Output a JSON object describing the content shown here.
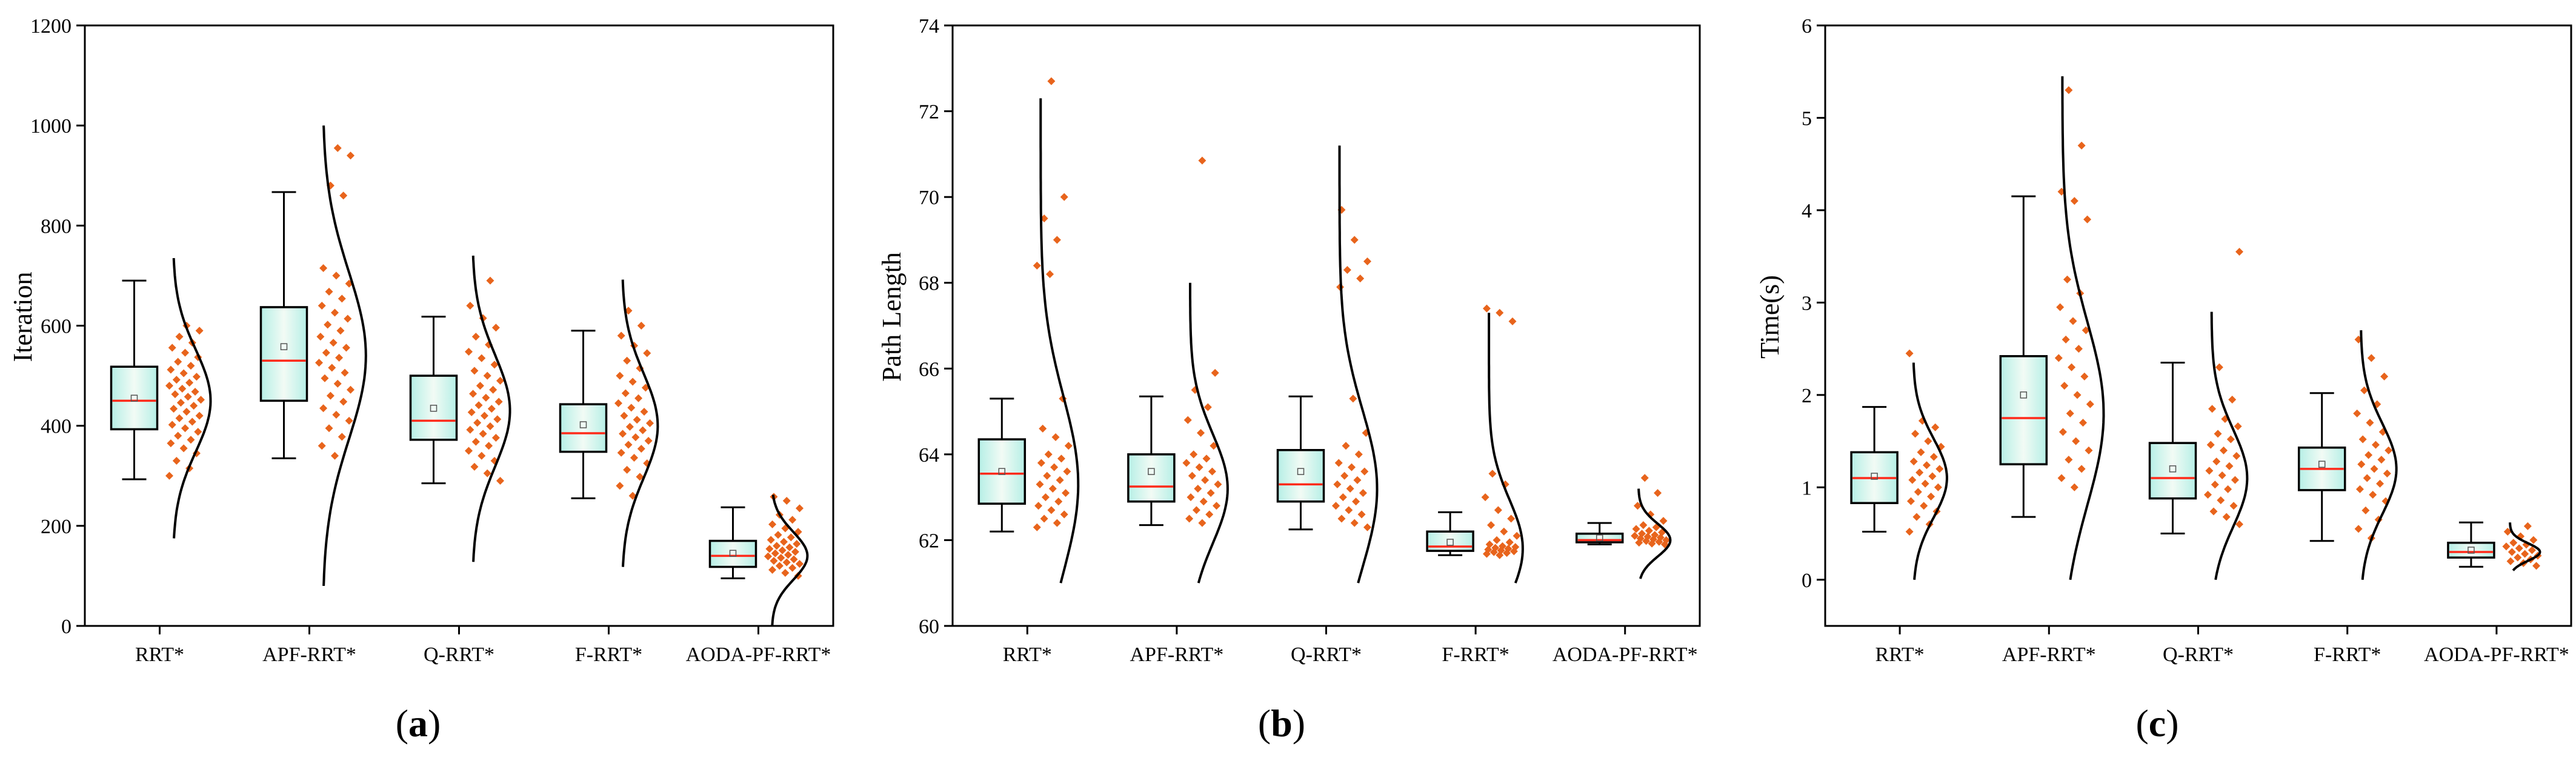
{
  "figure": {
    "colors": {
      "point": "#e8641c",
      "median": "#ff2a1a",
      "box_fill_edge": "#b6efe6",
      "box_fill_center": "#f2fbf5",
      "line": "#000000"
    },
    "icons": {
      "mean_marker": "small-open-square"
    }
  },
  "chart_data": [
    {
      "type": "box-half-violin",
      "panel_label": {
        "open": "(",
        "letter": "a",
        "close": ")"
      },
      "title": "",
      "xlabel": "",
      "ylabel": "Iteration",
      "ylim": [
        0,
        1200
      ],
      "yticks": [
        0,
        200,
        400,
        600,
        800,
        1000,
        1200
      ],
      "ytick_labels": [
        "0",
        "200",
        "400",
        "600",
        "800",
        "1000",
        "1200"
      ],
      "categories": [
        "RRT*",
        "APF-RRT*",
        "Q-RRT*",
        "F-RRT*",
        "AODA-PF-RRT*"
      ],
      "series": [
        {
          "name": "RRT*",
          "min": 293,
          "q1": 393,
          "median": 450,
          "q3": 518,
          "max": 690,
          "mean": 455,
          "curve_range": [
            175,
            735
          ],
          "curve_peak": 450,
          "curve_width": 1.0,
          "points": [
            300,
            315,
            330,
            345,
            355,
            365,
            372,
            380,
            388,
            395,
            402,
            408,
            415,
            420,
            428,
            434,
            440,
            446,
            452,
            458,
            463,
            468,
            474,
            480,
            486,
            492,
            498,
            505,
            512,
            520,
            528,
            537,
            546,
            556,
            566,
            578,
            590,
            600
          ]
        },
        {
          "name": "APF-RRT*",
          "min": 335,
          "q1": 450,
          "median": 530,
          "q3": 637,
          "max": 867,
          "mean": 558,
          "curve_range": [
            80,
            1000
          ],
          "curve_peak": 540,
          "curve_width": 1.15,
          "points": [
            340,
            360,
            378,
            395,
            410,
            422,
            435,
            448,
            460,
            472,
            484,
            495,
            506,
            516,
            526,
            536,
            546,
            556,
            566,
            578,
            590,
            602,
            614,
            626,
            640,
            654,
            668,
            684,
            700,
            715,
            860,
            880,
            940,
            955
          ]
        },
        {
          "name": "Q-RRT*",
          "min": 285,
          "q1": 372,
          "median": 410,
          "q3": 500,
          "max": 618,
          "mean": 435,
          "curve_range": [
            128,
            740
          ],
          "curve_peak": 430,
          "curve_width": 1.0,
          "points": [
            290,
            305,
            318,
            330,
            340,
            350,
            360,
            368,
            376,
            384,
            392,
            399,
            406,
            413,
            420,
            427,
            434,
            441,
            448,
            456,
            464,
            472,
            480,
            490,
            500,
            510,
            522,
            535,
            548,
            562,
            578,
            596,
            615,
            640,
            690
          ]
        },
        {
          "name": "F-RRT*",
          "min": 255,
          "q1": 348,
          "median": 385,
          "q3": 443,
          "max": 590,
          "mean": 402,
          "curve_range": [
            118,
            692
          ],
          "curve_peak": 400,
          "curve_width": 0.95,
          "points": [
            260,
            280,
            298,
            312,
            325,
            336,
            346,
            354,
            362,
            370,
            377,
            384,
            391,
            398,
            405,
            412,
            420,
            428,
            436,
            445,
            455,
            465,
            476,
            488,
            500,
            515,
            530,
            545,
            560,
            580,
            600,
            630
          ]
        },
        {
          "name": "AODA-PF-RRT*",
          "min": 95,
          "q1": 118,
          "median": 140,
          "q3": 170,
          "max": 237,
          "mean": 145,
          "curve_range": [
            0,
            262
          ],
          "curve_peak": 140,
          "curve_width": 0.95,
          "points": [
            100,
            106,
            112,
            116,
            120,
            124,
            127,
            130,
            133,
            136,
            139,
            142,
            145,
            148,
            151,
            154,
            157,
            160,
            164,
            168,
            172,
            177,
            182,
            188,
            195,
            203,
            212,
            222,
            235,
            250,
            258
          ]
        }
      ]
    },
    {
      "type": "box-half-violin",
      "panel_label": {
        "open": "(",
        "letter": "b",
        "close": ")"
      },
      "title": "",
      "xlabel": "",
      "ylabel": "Path Length",
      "ylim": [
        60,
        74
      ],
      "yticks": [
        60,
        62,
        64,
        66,
        68,
        70,
        72,
        74
      ],
      "ytick_labels": [
        "60",
        "62",
        "64",
        "66",
        "68",
        "70",
        "72",
        "74"
      ],
      "categories": [
        "RRT*",
        "APF-RRT*",
        "Q-RRT*",
        "F-RRT*",
        "AODA-PF-RRT*"
      ],
      "series": [
        {
          "name": "RRT*",
          "min": 62.2,
          "q1": 62.85,
          "median": 63.55,
          "q3": 64.35,
          "max": 65.3,
          "mean": 63.6,
          "curve_range": [
            61.0,
            72.3
          ],
          "curve_peak": 63.3,
          "curve_width": 1.0,
          "points": [
            62.3,
            62.4,
            62.5,
            62.6,
            62.7,
            62.8,
            62.9,
            63.0,
            63.1,
            63.2,
            63.3,
            63.4,
            63.5,
            63.6,
            63.7,
            63.8,
            63.9,
            64.0,
            64.2,
            64.4,
            64.6,
            65.3,
            68.2,
            68.4,
            69.0,
            69.5,
            70.0,
            72.7
          ]
        },
        {
          "name": "APF-RRT*",
          "min": 62.35,
          "q1": 62.9,
          "median": 63.25,
          "q3": 64.0,
          "max": 65.35,
          "mean": 63.6,
          "curve_range": [
            61.0,
            68.0
          ],
          "curve_peak": 63.2,
          "curve_width": 1.0,
          "points": [
            62.4,
            62.5,
            62.6,
            62.7,
            62.8,
            62.9,
            63.0,
            63.1,
            63.2,
            63.3,
            63.4,
            63.5,
            63.6,
            63.7,
            63.8,
            63.9,
            64.0,
            64.2,
            64.5,
            64.8,
            65.1,
            65.5,
            65.9,
            70.85
          ]
        },
        {
          "name": "Q-RRT*",
          "min": 62.25,
          "q1": 62.9,
          "median": 63.3,
          "q3": 64.1,
          "max": 65.35,
          "mean": 63.6,
          "curve_range": [
            61.0,
            71.2
          ],
          "curve_peak": 63.2,
          "curve_width": 1.0,
          "points": [
            62.3,
            62.4,
            62.5,
            62.6,
            62.7,
            62.8,
            62.9,
            63.0,
            63.1,
            63.2,
            63.3,
            63.4,
            63.5,
            63.6,
            63.7,
            63.8,
            64.0,
            64.2,
            64.5,
            65.3,
            67.9,
            68.1,
            68.3,
            68.5,
            69.0,
            69.7
          ]
        },
        {
          "name": "F-RRT*",
          "min": 61.65,
          "q1": 61.75,
          "median": 61.85,
          "q3": 62.2,
          "max": 62.65,
          "mean": 61.95,
          "curve_range": [
            61.0,
            67.3
          ],
          "curve_peak": 61.8,
          "curve_width": 0.9,
          "points": [
            61.65,
            61.68,
            61.7,
            61.72,
            61.74,
            61.76,
            61.78,
            61.8,
            61.82,
            61.84,
            61.86,
            61.9,
            61.95,
            62.0,
            62.1,
            62.2,
            62.35,
            62.5,
            62.7,
            63.0,
            63.3,
            63.55,
            67.1,
            67.3,
            67.4
          ]
        },
        {
          "name": "AODA-PF-RRT*",
          "min": 61.9,
          "q1": 61.95,
          "median": 62.0,
          "q3": 62.15,
          "max": 62.4,
          "mean": 62.05,
          "curve_range": [
            61.1,
            63.2
          ],
          "curve_peak": 62.0,
          "curve_width": 0.85,
          "points": [
            61.9,
            61.92,
            61.94,
            61.96,
            61.98,
            62.0,
            62.02,
            62.04,
            62.06,
            62.08,
            62.1,
            62.12,
            62.15,
            62.18,
            62.22,
            62.26,
            62.3,
            62.35,
            62.45,
            62.6,
            62.8,
            63.1,
            63.45
          ]
        }
      ]
    },
    {
      "type": "box-half-violin",
      "panel_label": {
        "open": "(",
        "letter": "c",
        "close": ")"
      },
      "title": "",
      "xlabel": "",
      "ylabel": "Time(s)",
      "ylim": [
        -0.5,
        6
      ],
      "yticks": [
        0,
        1,
        2,
        3,
        4,
        5,
        6
      ],
      "ytick_labels": [
        "0",
        "1",
        "2",
        "3",
        "4",
        "5",
        "6"
      ],
      "categories": [
        "RRT*",
        "APF-RRT*",
        "Q-RRT*",
        "F-RRT*",
        "AODA-PF-RRT*"
      ],
      "series": [
        {
          "name": "RRT*",
          "min": 0.52,
          "q1": 0.83,
          "median": 1.1,
          "q3": 1.38,
          "max": 1.87,
          "mean": 1.12,
          "curve_range": [
            0.0,
            2.35
          ],
          "curve_peak": 1.1,
          "curve_width": 0.9,
          "points": [
            0.52,
            0.6,
            0.68,
            0.74,
            0.8,
            0.85,
            0.9,
            0.95,
            1.0,
            1.04,
            1.08,
            1.12,
            1.16,
            1.2,
            1.24,
            1.28,
            1.33,
            1.38,
            1.44,
            1.5,
            1.58,
            1.65,
            1.72,
            2.45
          ]
        },
        {
          "name": "APF-RRT*",
          "min": 0.68,
          "q1": 1.25,
          "median": 1.75,
          "q3": 2.42,
          "max": 4.15,
          "mean": 2.0,
          "curve_range": [
            0.0,
            5.45
          ],
          "curve_peak": 1.8,
          "curve_width": 1.1,
          "points": [
            1.0,
            1.1,
            1.2,
            1.3,
            1.4,
            1.5,
            1.6,
            1.7,
            1.8,
            1.9,
            2.0,
            2.1,
            2.2,
            2.3,
            2.4,
            2.5,
            2.6,
            2.7,
            2.8,
            2.95,
            3.1,
            3.25,
            3.9,
            4.1,
            4.2,
            4.7,
            5.3
          ]
        },
        {
          "name": "Q-RRT*",
          "min": 0.5,
          "q1": 0.88,
          "median": 1.1,
          "q3": 1.48,
          "max": 2.35,
          "mean": 1.2,
          "curve_range": [
            0.0,
            2.9
          ],
          "curve_peak": 1.1,
          "curve_width": 0.95,
          "points": [
            0.6,
            0.68,
            0.74,
            0.8,
            0.86,
            0.92,
            0.98,
            1.03,
            1.08,
            1.13,
            1.18,
            1.23,
            1.28,
            1.34,
            1.4,
            1.46,
            1.52,
            1.58,
            1.66,
            1.74,
            1.85,
            1.95,
            2.3,
            3.55
          ]
        },
        {
          "name": "F-RRT*",
          "min": 0.42,
          "q1": 0.97,
          "median": 1.2,
          "q3": 1.43,
          "max": 2.02,
          "mean": 1.25,
          "curve_range": [
            0.0,
            2.7
          ],
          "curve_peak": 1.2,
          "curve_width": 0.95,
          "points": [
            0.45,
            0.55,
            0.65,
            0.75,
            0.85,
            0.92,
            0.98,
            1.04,
            1.1,
            1.15,
            1.2,
            1.25,
            1.3,
            1.35,
            1.4,
            1.46,
            1.52,
            1.6,
            1.7,
            1.8,
            1.9,
            2.05,
            2.2,
            2.4,
            2.6
          ]
        },
        {
          "name": "AODA-PF-RRT*",
          "min": 0.14,
          "q1": 0.24,
          "median": 0.3,
          "q3": 0.4,
          "max": 0.62,
          "mean": 0.32,
          "curve_range": [
            0.1,
            0.62
          ],
          "curve_peak": 0.3,
          "curve_width": 0.8,
          "points": [
            0.15,
            0.18,
            0.2,
            0.22,
            0.24,
            0.26,
            0.28,
            0.3,
            0.32,
            0.34,
            0.36,
            0.38,
            0.4,
            0.43,
            0.47,
            0.52,
            0.58
          ]
        }
      ]
    }
  ]
}
